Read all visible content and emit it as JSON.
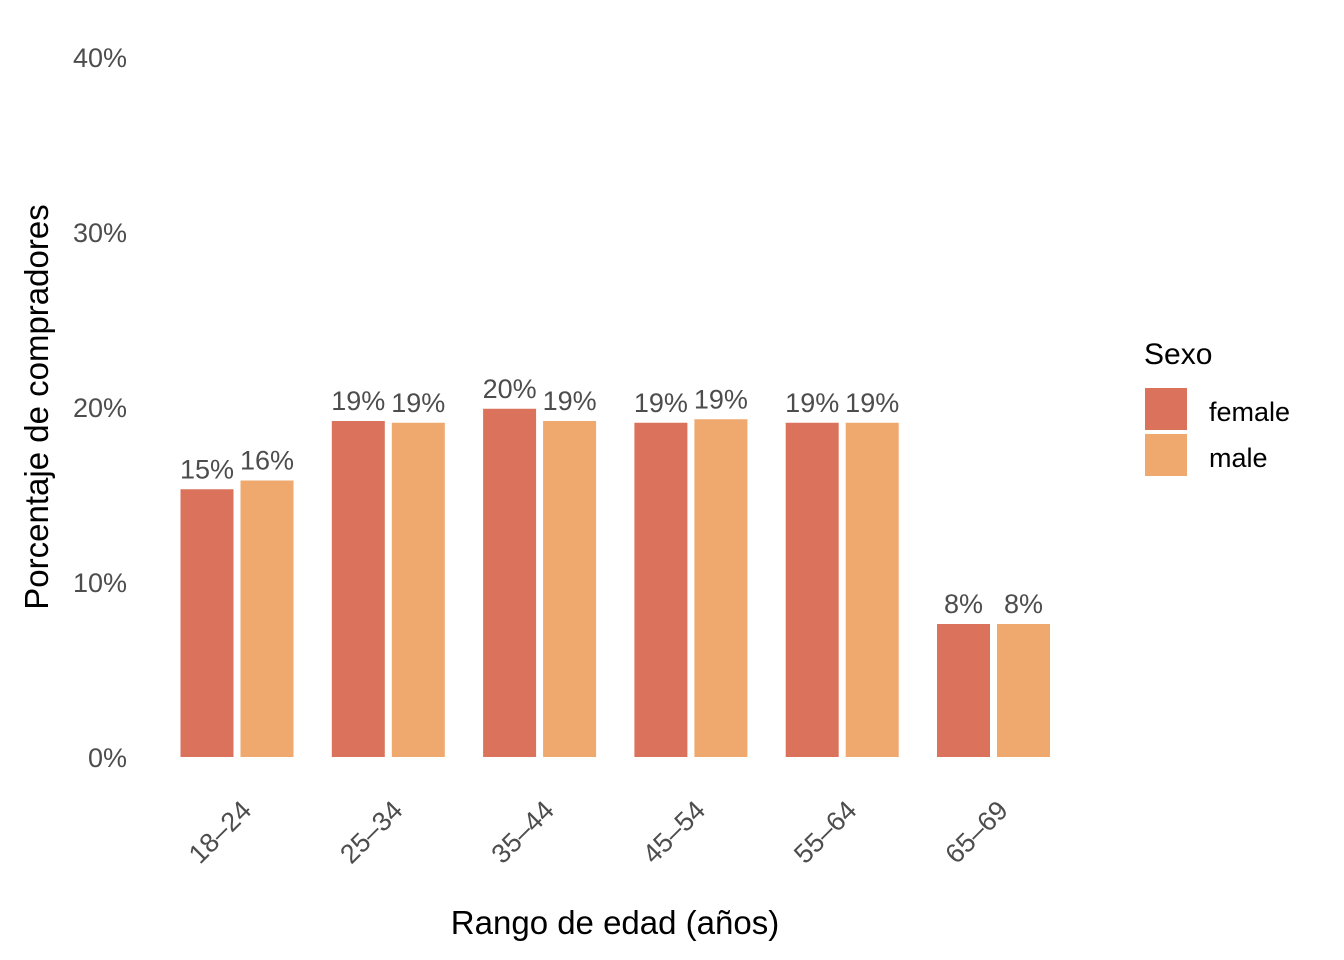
{
  "chart_data": {
    "type": "bar",
    "xlabel": "Rango de edad (años)",
    "ylabel": "Porcentaje de compradores",
    "ylim": [
      0,
      40
    ],
    "yticks": [
      "0%",
      "10%",
      "20%",
      "30%",
      "40%"
    ],
    "ytick_values": [
      0,
      10,
      20,
      30,
      40
    ],
    "categories": [
      "18–24",
      "25–34",
      "35–44",
      "45–54",
      "55–64",
      "65–69"
    ],
    "series": [
      {
        "name": "female",
        "color": "#db735c",
        "values": [
          15.3,
          19.2,
          19.9,
          19.1,
          19.1,
          7.6
        ],
        "labels": [
          "15%",
          "19%",
          "20%",
          "19%",
          "19%",
          "8%"
        ]
      },
      {
        "name": "male",
        "color": "#efa86e",
        "values": [
          15.8,
          19.1,
          19.2,
          19.3,
          19.1,
          7.6
        ],
        "labels": [
          "16%",
          "19%",
          "19%",
          "19%",
          "19%",
          "8%"
        ]
      }
    ],
    "legend": {
      "title": "Sexo",
      "position": "right"
    },
    "grid": false
  }
}
